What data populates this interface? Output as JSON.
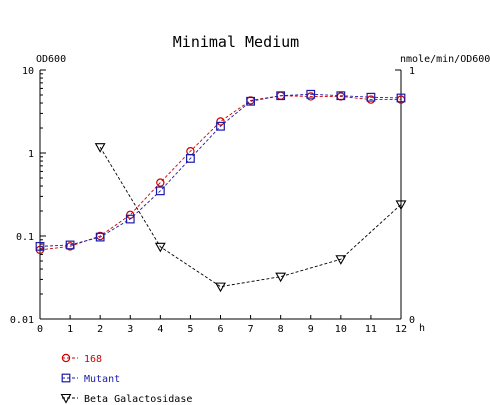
{
  "chart_data": {
    "type": "line",
    "title": "Minimal Medium",
    "y_left_label": "OD600",
    "y_right_label": "nmole/min/OD600",
    "x_unit_label": "h",
    "x_range": [
      0,
      12
    ],
    "x_ticks": [
      "0",
      "1",
      "2",
      "3",
      "4",
      "5",
      "6",
      "7",
      "8",
      "9",
      "10",
      "11",
      "12"
    ],
    "y_left_scale": "log",
    "y_left_range": [
      0.01,
      10
    ],
    "y_left_ticks": [
      "10",
      "1",
      "0.1",
      "0.01"
    ],
    "y_right_scale": "linear",
    "y_right_range": [
      0,
      1
    ],
    "y_right_ticks": [
      "1",
      "0"
    ],
    "grid": false,
    "legend_position": "bottom-left",
    "series": [
      {
        "name": "168",
        "axis": "left",
        "marker": "circle",
        "color": "#cc0000",
        "x": [
          0,
          1,
          2,
          3,
          4,
          5,
          6,
          7,
          8,
          9,
          10,
          11,
          12
        ],
        "y": [
          0.068,
          0.075,
          0.1,
          0.18,
          0.44,
          1.05,
          2.4,
          4.3,
          4.9,
          4.8,
          4.8,
          4.4,
          4.4
        ]
      },
      {
        "name": "Mutant",
        "axis": "left",
        "marker": "square",
        "color": "#1a1aaa",
        "x": [
          0,
          1,
          2,
          3,
          4,
          5,
          6,
          7,
          8,
          9,
          10,
          11,
          12
        ],
        "y": [
          0.075,
          0.078,
          0.097,
          0.16,
          0.35,
          0.86,
          2.1,
          4.2,
          4.9,
          5.1,
          4.9,
          4.7,
          4.6
        ]
      },
      {
        "name": "Beta Galactosidase",
        "axis": "right",
        "marker": "triangle-down",
        "color": "#000000",
        "x": [
          2,
          4,
          6,
          8,
          10,
          12
        ],
        "y": [
          0.69,
          0.29,
          0.13,
          0.17,
          0.24,
          0.46
        ]
      }
    ]
  }
}
